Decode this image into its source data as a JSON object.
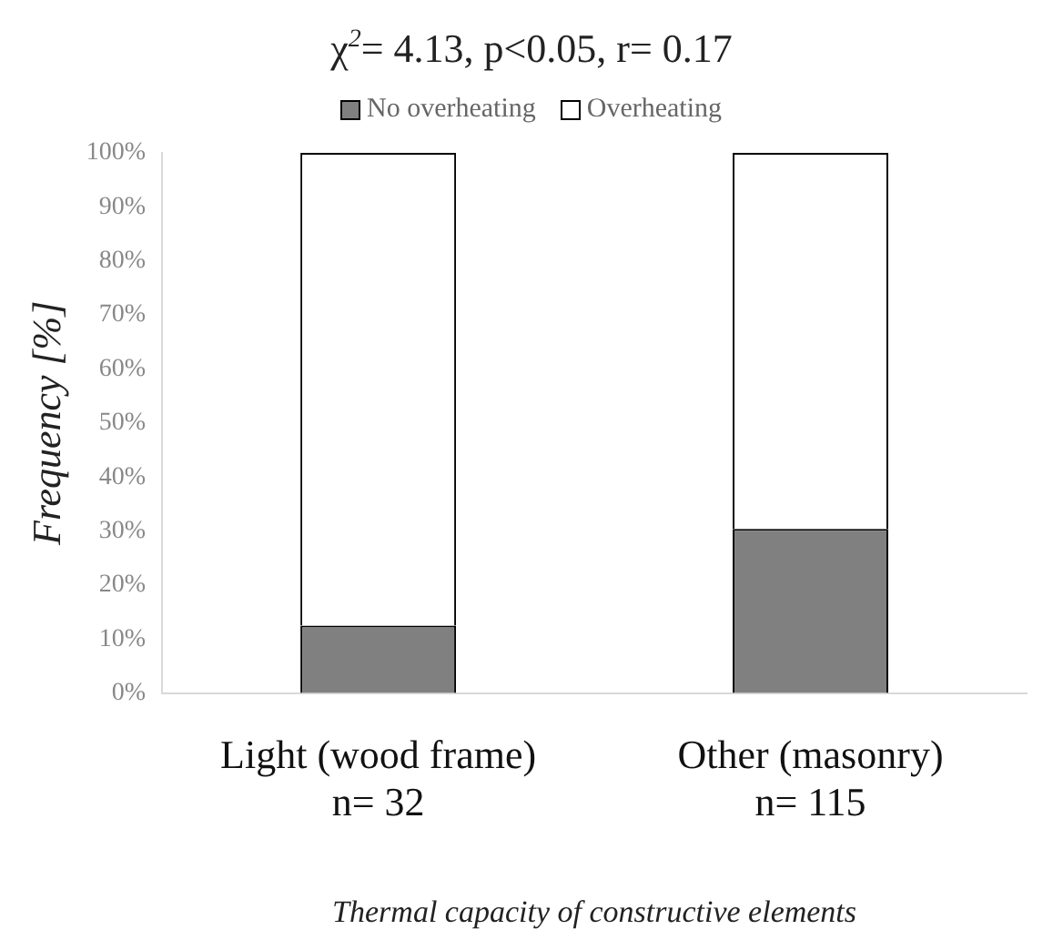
{
  "chart_data": {
    "type": "bar",
    "title": "χ$^{2}$= 4.13, p<0.05, r= 0.17",
    "xlabel": "Thermal capacity of constructive elements",
    "ylabel": "Frequency [%]",
    "categories": [
      "Light (wood frame)\nn= 32",
      "Other (masonry)\nn= 115"
    ],
    "series": [
      {
        "name": "No overheating",
        "color": "#808080",
        "values": [
          12.5,
          30.4
        ]
      },
      {
        "name": "Overheating",
        "color": "#ffffff",
        "values": [
          87.5,
          69.6
        ]
      }
    ],
    "stacked": true,
    "ylim": [
      0,
      100
    ],
    "yticks": [
      {
        "value": 0,
        "label": "0%"
      },
      {
        "value": 10,
        "label": "10%"
      },
      {
        "value": 20,
        "label": "20%"
      },
      {
        "value": 30,
        "label": "30%"
      },
      {
        "value": 40,
        "label": "40%"
      },
      {
        "value": 50,
        "label": "50%"
      },
      {
        "value": 60,
        "label": "60%"
      },
      {
        "value": 70,
        "label": "70%"
      },
      {
        "value": 80,
        "label": "80%"
      },
      {
        "value": 90,
        "label": "90%"
      },
      {
        "value": 100,
        "label": "100%"
      }
    ],
    "grid": false,
    "legend": "top"
  }
}
